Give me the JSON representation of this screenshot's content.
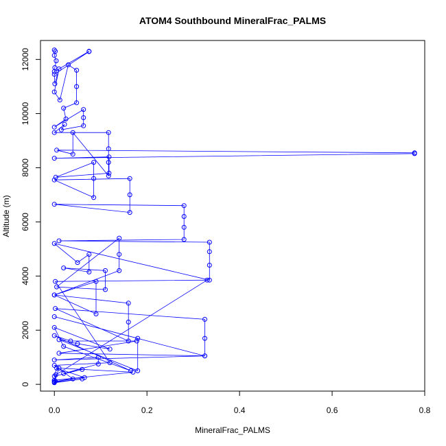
{
  "chart_data": {
    "type": "scatter",
    "title": "ATOM4 Southbound MineralFrac_PALMS",
    "xlabel": "MineralFrac_PALMS",
    "ylabel": "Altitude (m)",
    "xlim": [
      -0.03,
      0.8
    ],
    "ylim": [
      -250,
      12700
    ],
    "xticks": [
      0.0,
      0.2,
      0.4,
      0.6,
      0.8
    ],
    "xtick_labels": [
      "0.0",
      "0.2",
      "0.4",
      "0.6",
      "0.8"
    ],
    "yticks": [
      0,
      2000,
      4000,
      6000,
      8000,
      10000,
      12000
    ],
    "ytick_labels": [
      "0",
      "2000",
      "4000",
      "6000",
      "8000",
      "10000",
      "12000"
    ],
    "grid": false,
    "legend": "none",
    "series": [
      {
        "style": "points-and-lines",
        "x": [
          0.0,
          0.002,
          0.0,
          0.004,
          0.001,
          0.0,
          0.075,
          0.075,
          0.0,
          0.001,
          0.01,
          0.0,
          0.012,
          0.03,
          0.048,
          0.048,
          0.048,
          0.02,
          0.025,
          0.0,
          0.063,
          0.063,
          0.063,
          0.015,
          0.022,
          0.0,
          0.117,
          0.117,
          0.117,
          0.117,
          0.04,
          0.04,
          0.005,
          0.778,
          0.778,
          0.0,
          0.118,
          0.118,
          0.003,
          0.085,
          0.085,
          0.085,
          0.0,
          0.163,
          0.163,
          0.163,
          0.0,
          0.28,
          0.28,
          0.28,
          0.28,
          0.01,
          0.335,
          0.335,
          0.335,
          0.335,
          0.0,
          0.05,
          0.075,
          0.075,
          0.02,
          0.11,
          0.11,
          0.005,
          0.14,
          0.14,
          0.14,
          0.0,
          0.09,
          0.09,
          0.0,
          0.16,
          0.16,
          0.16,
          0.002,
          0.325,
          0.325,
          0.325,
          0.0,
          0.18,
          0.18,
          0.01,
          0.05,
          0.12,
          0.0,
          0.02,
          0.165,
          0.0,
          0.035,
          0.178,
          0.01,
          0.325,
          0.0,
          0.095,
          0.095,
          0.02,
          0.06,
          0.0,
          0.005,
          0.065,
          0.0,
          0.003,
          0.33,
          0.002,
          0.12,
          0.0,
          0.04,
          0.0,
          0.01,
          0.17,
          0.0,
          0.002,
          0.0,
          0.06,
          0.0
        ],
        "y": [
          12350,
          12300,
          12150,
          11950,
          11700,
          11550,
          12300,
          12290,
          11450,
          11100,
          11650,
          10800,
          10500,
          11800,
          11600,
          11000,
          10400,
          10200,
          9800,
          9500,
          10150,
          9850,
          9550,
          9400,
          9600,
          9300,
          9300,
          8700,
          8200,
          7700,
          9300,
          8500,
          8650,
          8550,
          8520,
          8350,
          8400,
          7800,
          7650,
          8200,
          7600,
          6900,
          7550,
          7600,
          7000,
          6350,
          6650,
          6600,
          6200,
          5800,
          5350,
          5300,
          5250,
          4900,
          4400,
          3850,
          5200,
          4500,
          4800,
          4150,
          4300,
          4200,
          3500,
          3600,
          5400,
          4800,
          4200,
          3300,
          3800,
          2600,
          3300,
          3000,
          2300,
          1600,
          2800,
          2400,
          1700,
          1050,
          2500,
          1700,
          500,
          1650,
          1500,
          1300,
          2100,
          1400,
          500,
          1800,
          1600,
          1600,
          1150,
          1050,
          900,
          1000,
          750,
          400,
          550,
          300,
          600,
          250,
          150,
          350,
          3850,
          3800,
          800,
          700,
          200,
          100,
          600,
          450,
          150,
          120,
          80,
          200,
          60
        ]
      }
    ],
    "color": "#0000ff"
  }
}
